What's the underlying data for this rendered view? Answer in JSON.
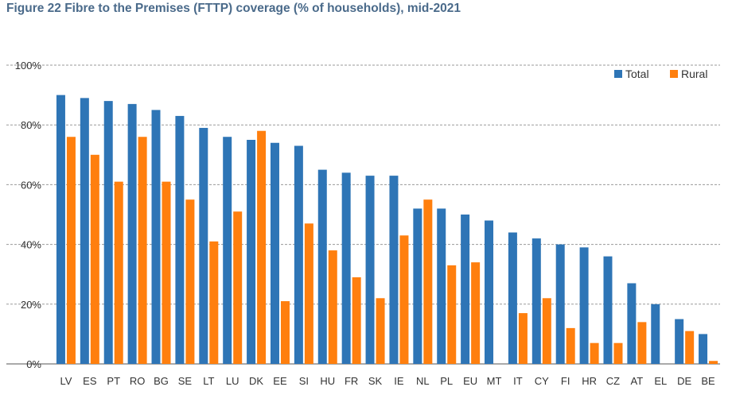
{
  "chart_data": {
    "type": "bar",
    "title": "Figure 22 Fibre to the Premises (FTTP) coverage (% of households), mid-2021",
    "xlabel": "",
    "ylabel": "",
    "ylim": [
      0,
      100
    ],
    "y_ticks": [
      "0%",
      "20%",
      "40%",
      "60%",
      "80%",
      "100%"
    ],
    "grid": true,
    "legend_position": "top-right",
    "categories": [
      "LV",
      "ES",
      "PT",
      "RO",
      "BG",
      "SE",
      "LT",
      "LU",
      "DK",
      "EE",
      "SI",
      "HU",
      "FR",
      "SK",
      "IE",
      "NL",
      "PL",
      "EU",
      "MT",
      "IT",
      "CY",
      "FI",
      "HR",
      "CZ",
      "AT",
      "EL",
      "DE",
      "BE"
    ],
    "series": [
      {
        "name": "Total",
        "color": "#2e75b6",
        "values": [
          90,
          89,
          88,
          87,
          85,
          83,
          79,
          76,
          75,
          74,
          73,
          65,
          64,
          63,
          63,
          52,
          52,
          50,
          48,
          44,
          42,
          40,
          39,
          36,
          27,
          20,
          15,
          10
        ]
      },
      {
        "name": "Rural",
        "color": "#ff7f0e",
        "values": [
          76,
          70,
          61,
          76,
          61,
          55,
          41,
          51,
          78,
          21,
          47,
          38,
          29,
          22,
          43,
          55,
          33,
          34,
          0,
          17,
          22,
          12,
          7,
          7,
          14,
          0,
          11,
          1
        ]
      }
    ]
  }
}
